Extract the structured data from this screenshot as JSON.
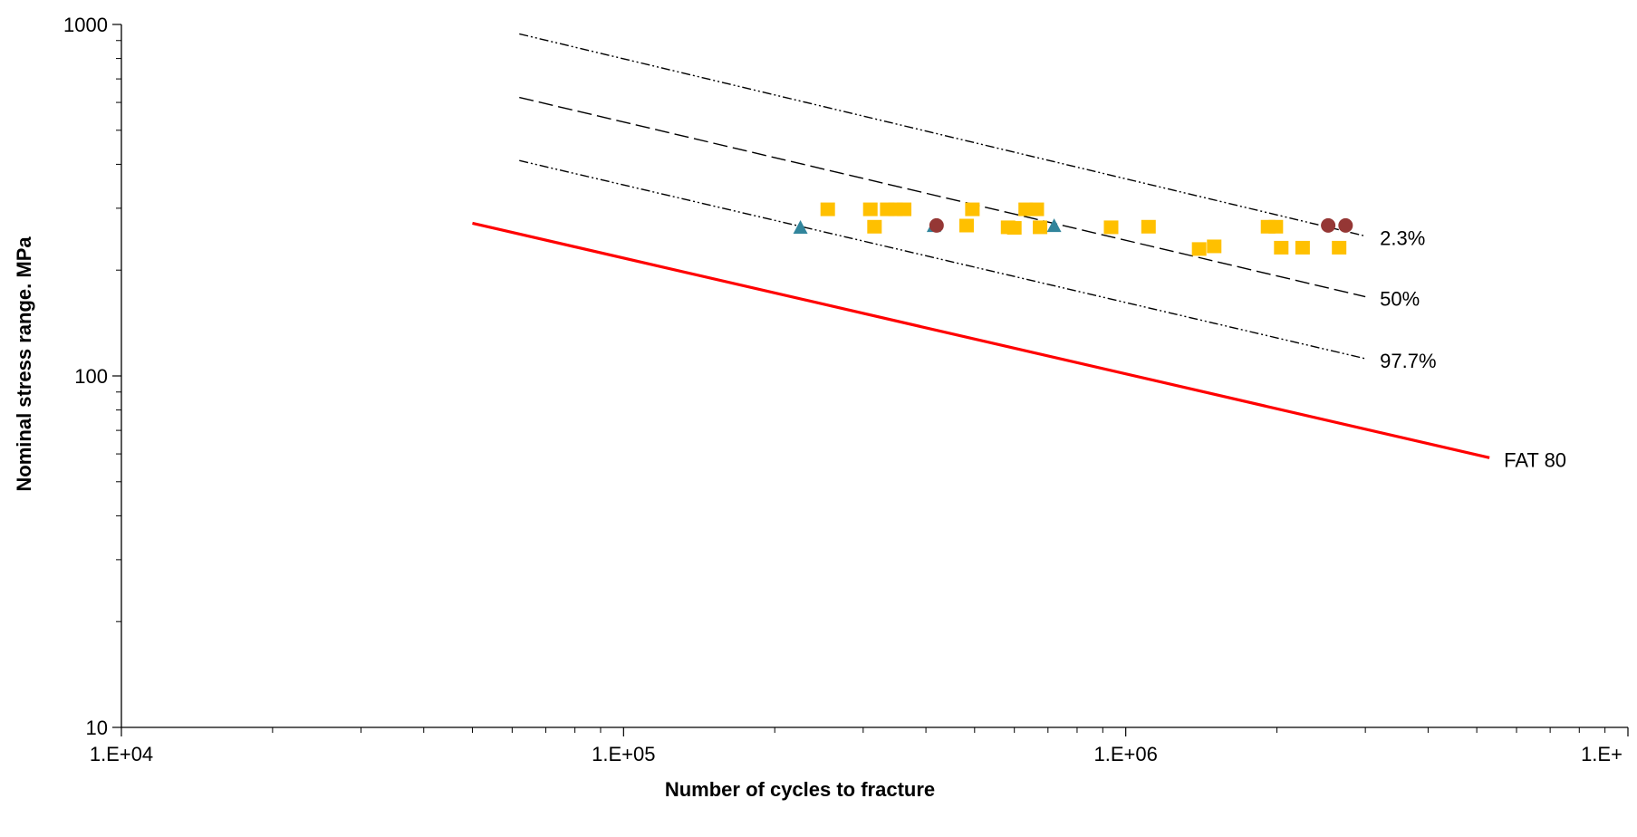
{
  "chart_data": {
    "type": "scatter",
    "title": "",
    "xlabel": "Number of cycles to fracture",
    "ylabel": "Nominal stress range. MPa",
    "x_scale": "log",
    "y_scale": "log",
    "xlim": [
      10000,
      10000000
    ],
    "ylim": [
      10,
      1000
    ],
    "grid": false,
    "x_ticks": [
      {
        "value": 10000,
        "label": "1.E+04"
      },
      {
        "value": 100000,
        "label": "1.E+05"
      },
      {
        "value": 1000000,
        "label": "1.E+06"
      },
      {
        "value": 10000000,
        "label": "1.E+"
      }
    ],
    "y_ticks": [
      {
        "value": 10,
        "label": "10"
      },
      {
        "value": 100,
        "label": "100"
      },
      {
        "value": 1000,
        "label": "1000"
      }
    ],
    "colors": {
      "axis": "#000000",
      "squares": "#FFC000",
      "triangles": "#31859C",
      "circles": "#953735",
      "fat": "#FF0000",
      "curves": "#000000"
    },
    "lines": [
      {
        "name": "2.3%",
        "style": "dash-dot",
        "x": [
          62000,
          3000000
        ],
        "y": [
          940,
          250
        ]
      },
      {
        "name": "50%",
        "style": "dash",
        "x": [
          62000,
          3000000
        ],
        "y": [
          620,
          168
        ]
      },
      {
        "name": "97.7%",
        "style": "dash-dot",
        "x": [
          62000,
          3000000
        ],
        "y": [
          410,
          112
        ]
      },
      {
        "name": "FAT 80",
        "style": "solid",
        "x": [
          50000,
          5300000
        ],
        "y": [
          272,
          58.5
        ]
      }
    ],
    "series": [
      {
        "marker": "square",
        "points": [
          {
            "x": 255000,
            "y": 297
          },
          {
            "x": 310000,
            "y": 297
          },
          {
            "x": 335000,
            "y": 297
          },
          {
            "x": 348000,
            "y": 297
          },
          {
            "x": 362000,
            "y": 297
          },
          {
            "x": 316000,
            "y": 265
          },
          {
            "x": 482000,
            "y": 267
          },
          {
            "x": 495000,
            "y": 297
          },
          {
            "x": 583000,
            "y": 264
          },
          {
            "x": 600000,
            "y": 263
          },
          {
            "x": 632000,
            "y": 297
          },
          {
            "x": 665000,
            "y": 297
          },
          {
            "x": 675000,
            "y": 264
          },
          {
            "x": 935000,
            "y": 264
          },
          {
            "x": 1110000,
            "y": 265
          },
          {
            "x": 1400000,
            "y": 229
          },
          {
            "x": 1500000,
            "y": 233
          },
          {
            "x": 1920000,
            "y": 265
          },
          {
            "x": 1990000,
            "y": 265
          },
          {
            "x": 2040000,
            "y": 231
          },
          {
            "x": 2250000,
            "y": 231
          },
          {
            "x": 2660000,
            "y": 231
          }
        ]
      },
      {
        "marker": "triangle",
        "points": [
          {
            "x": 225000,
            "y": 263
          },
          {
            "x": 415000,
            "y": 266
          },
          {
            "x": 720000,
            "y": 266
          }
        ]
      },
      {
        "marker": "circle",
        "points": [
          {
            "x": 420000,
            "y": 268
          },
          {
            "x": 2530000,
            "y": 268
          },
          {
            "x": 2740000,
            "y": 268
          }
        ]
      }
    ]
  }
}
